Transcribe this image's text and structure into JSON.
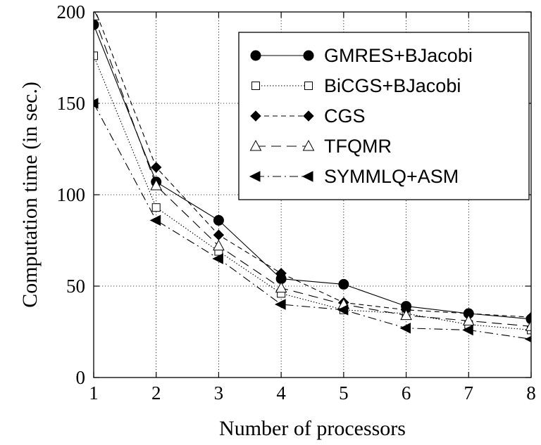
{
  "chart_data": {
    "type": "line",
    "title": "",
    "xlabel": "Number of processors",
    "ylabel": "Computation time (in sec.)",
    "x": [
      1,
      2,
      3,
      4,
      5,
      6,
      7,
      8
    ],
    "xlim": [
      1,
      8
    ],
    "ylim": [
      0,
      200
    ],
    "xticks": [
      "1",
      "2",
      "3",
      "4",
      "5",
      "6",
      "7",
      "8"
    ],
    "yticks": [
      "0",
      "50",
      "100",
      "150",
      "200"
    ],
    "grid": true,
    "legend_position": "top-right",
    "series": [
      {
        "name": "GMRES+BJacobi",
        "marker": "filled-circle",
        "line": "solid",
        "values": [
          193,
          107,
          86,
          54,
          51,
          39,
          35,
          32
        ]
      },
      {
        "name": "BiCGS+BJacobi",
        "marker": "open-square",
        "line": "dotted",
        "values": [
          176,
          93,
          69,
          46,
          37,
          35,
          29,
          26
        ]
      },
      {
        "name": "CGS",
        "marker": "filled-diamond",
        "line": "dashed",
        "values": [
          203,
          115,
          78,
          57,
          41,
          37,
          35,
          33
        ]
      },
      {
        "name": "TFQMR",
        "marker": "open-triangle",
        "line": "long-dashed",
        "values": [
          198,
          105,
          72,
          49,
          40,
          34,
          31,
          28
        ]
      },
      {
        "name": "SYMMLQ+ASM",
        "marker": "filled-left-triangle",
        "line": "dash-dot",
        "values": [
          150,
          86,
          65,
          40,
          37,
          27,
          26,
          21
        ]
      }
    ]
  }
}
